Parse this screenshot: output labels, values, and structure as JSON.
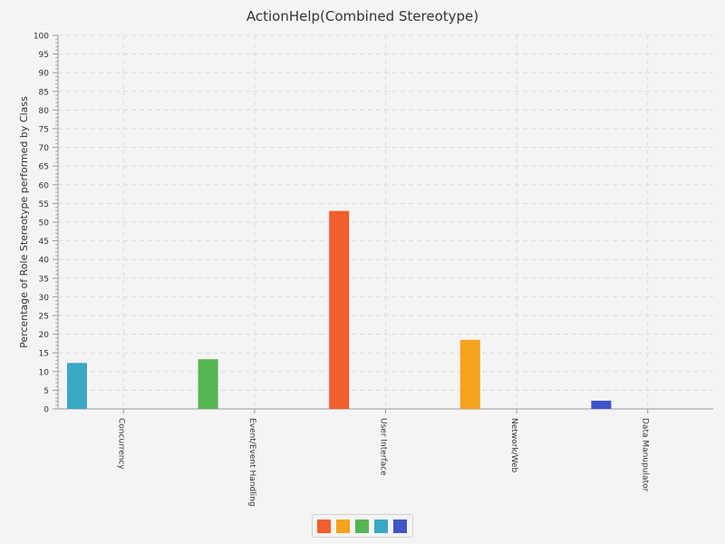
{
  "chart_data": {
    "type": "bar",
    "title": "ActionHelp(Combined Stereotype)",
    "xlabel": "",
    "ylabel": "Percentage of Role Stereotype performed by Class",
    "ylim": [
      0,
      100
    ],
    "y_major_step": 5,
    "y_minor_step": 1,
    "grid": true,
    "legend_position": "bottom-center",
    "categories": [
      "Concurrency",
      "Event/Event Handling",
      "User Interface",
      "Network/Web",
      "Data Manupulator"
    ],
    "series": [
      {
        "color": "#f05f2c",
        "values": [
          0,
          0,
          53,
          0,
          0
        ]
      },
      {
        "color": "#f5a21e",
        "values": [
          0,
          0,
          0,
          18.5,
          0
        ]
      },
      {
        "color": "#55b555",
        "values": [
          0,
          13.3,
          0,
          0,
          0
        ]
      },
      {
        "color": "#3ba8c6",
        "values": [
          12.3,
          0,
          0,
          0,
          0
        ]
      },
      {
        "color": "#4055c6",
        "values": [
          0,
          0,
          0,
          0,
          2.2
        ]
      }
    ]
  }
}
